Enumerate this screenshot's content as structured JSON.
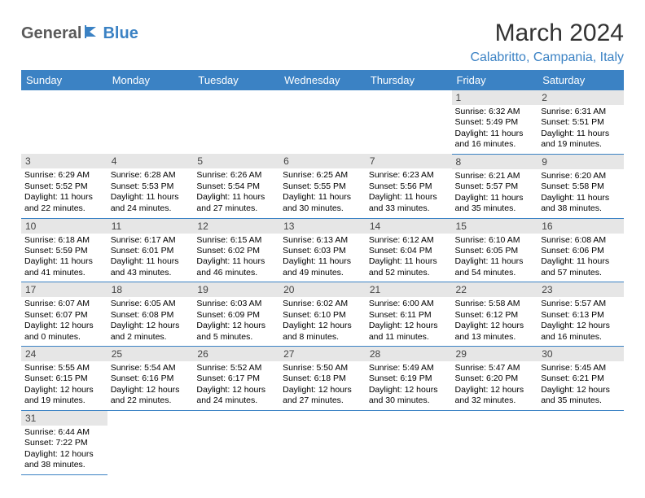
{
  "logo": {
    "text1": "General",
    "text2": "Blue"
  },
  "title": "March 2024",
  "location": "Calabritto, Campania, Italy",
  "colors": {
    "header_bg": "#3b82c4",
    "header_fg": "#ffffff",
    "daynum_bg": "#e6e6e6",
    "accent": "#3b82c4",
    "logo_gray": "#5a5a5a"
  },
  "dayHeaders": [
    "Sunday",
    "Monday",
    "Tuesday",
    "Wednesday",
    "Thursday",
    "Friday",
    "Saturday"
  ],
  "weeks": [
    [
      null,
      null,
      null,
      null,
      null,
      {
        "n": "1",
        "sr": "6:32 AM",
        "ss": "5:49 PM",
        "dl": "11 hours and 16 minutes."
      },
      {
        "n": "2",
        "sr": "6:31 AM",
        "ss": "5:51 PM",
        "dl": "11 hours and 19 minutes."
      }
    ],
    [
      {
        "n": "3",
        "sr": "6:29 AM",
        "ss": "5:52 PM",
        "dl": "11 hours and 22 minutes."
      },
      {
        "n": "4",
        "sr": "6:28 AM",
        "ss": "5:53 PM",
        "dl": "11 hours and 24 minutes."
      },
      {
        "n": "5",
        "sr": "6:26 AM",
        "ss": "5:54 PM",
        "dl": "11 hours and 27 minutes."
      },
      {
        "n": "6",
        "sr": "6:25 AM",
        "ss": "5:55 PM",
        "dl": "11 hours and 30 minutes."
      },
      {
        "n": "7",
        "sr": "6:23 AM",
        "ss": "5:56 PM",
        "dl": "11 hours and 33 minutes."
      },
      {
        "n": "8",
        "sr": "6:21 AM",
        "ss": "5:57 PM",
        "dl": "11 hours and 35 minutes."
      },
      {
        "n": "9",
        "sr": "6:20 AM",
        "ss": "5:58 PM",
        "dl": "11 hours and 38 minutes."
      }
    ],
    [
      {
        "n": "10",
        "sr": "6:18 AM",
        "ss": "5:59 PM",
        "dl": "11 hours and 41 minutes."
      },
      {
        "n": "11",
        "sr": "6:17 AM",
        "ss": "6:01 PM",
        "dl": "11 hours and 43 minutes."
      },
      {
        "n": "12",
        "sr": "6:15 AM",
        "ss": "6:02 PM",
        "dl": "11 hours and 46 minutes."
      },
      {
        "n": "13",
        "sr": "6:13 AM",
        "ss": "6:03 PM",
        "dl": "11 hours and 49 minutes."
      },
      {
        "n": "14",
        "sr": "6:12 AM",
        "ss": "6:04 PM",
        "dl": "11 hours and 52 minutes."
      },
      {
        "n": "15",
        "sr": "6:10 AM",
        "ss": "6:05 PM",
        "dl": "11 hours and 54 minutes."
      },
      {
        "n": "16",
        "sr": "6:08 AM",
        "ss": "6:06 PM",
        "dl": "11 hours and 57 minutes."
      }
    ],
    [
      {
        "n": "17",
        "sr": "6:07 AM",
        "ss": "6:07 PM",
        "dl": "12 hours and 0 minutes."
      },
      {
        "n": "18",
        "sr": "6:05 AM",
        "ss": "6:08 PM",
        "dl": "12 hours and 2 minutes."
      },
      {
        "n": "19",
        "sr": "6:03 AM",
        "ss": "6:09 PM",
        "dl": "12 hours and 5 minutes."
      },
      {
        "n": "20",
        "sr": "6:02 AM",
        "ss": "6:10 PM",
        "dl": "12 hours and 8 minutes."
      },
      {
        "n": "21",
        "sr": "6:00 AM",
        "ss": "6:11 PM",
        "dl": "12 hours and 11 minutes."
      },
      {
        "n": "22",
        "sr": "5:58 AM",
        "ss": "6:12 PM",
        "dl": "12 hours and 13 minutes."
      },
      {
        "n": "23",
        "sr": "5:57 AM",
        "ss": "6:13 PM",
        "dl": "12 hours and 16 minutes."
      }
    ],
    [
      {
        "n": "24",
        "sr": "5:55 AM",
        "ss": "6:15 PM",
        "dl": "12 hours and 19 minutes."
      },
      {
        "n": "25",
        "sr": "5:54 AM",
        "ss": "6:16 PM",
        "dl": "12 hours and 22 minutes."
      },
      {
        "n": "26",
        "sr": "5:52 AM",
        "ss": "6:17 PM",
        "dl": "12 hours and 24 minutes."
      },
      {
        "n": "27",
        "sr": "5:50 AM",
        "ss": "6:18 PM",
        "dl": "12 hours and 27 minutes."
      },
      {
        "n": "28",
        "sr": "5:49 AM",
        "ss": "6:19 PM",
        "dl": "12 hours and 30 minutes."
      },
      {
        "n": "29",
        "sr": "5:47 AM",
        "ss": "6:20 PM",
        "dl": "12 hours and 32 minutes."
      },
      {
        "n": "30",
        "sr": "5:45 AM",
        "ss": "6:21 PM",
        "dl": "12 hours and 35 minutes."
      }
    ],
    [
      {
        "n": "31",
        "sr": "6:44 AM",
        "ss": "7:22 PM",
        "dl": "12 hours and 38 minutes."
      },
      null,
      null,
      null,
      null,
      null,
      null
    ]
  ],
  "labels": {
    "sunrise": "Sunrise: ",
    "sunset": "Sunset: ",
    "daylight": "Daylight: "
  }
}
